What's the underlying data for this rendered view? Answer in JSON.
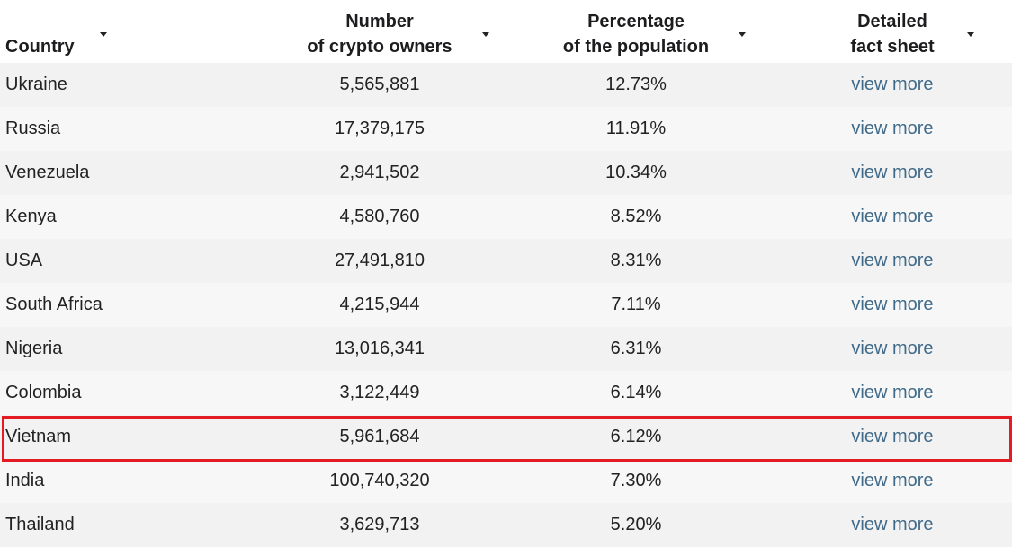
{
  "table": {
    "headers": {
      "country": "Country",
      "owners_line1": "Number",
      "owners_line2": "of crypto owners",
      "pct_line1": "Percentage",
      "pct_line2": "of the population",
      "fact_line1": "Detailed",
      "fact_line2": "fact sheet"
    },
    "rows": [
      {
        "country": "Ukraine",
        "owners": "5,565,881",
        "pct": "12.73%",
        "link": "view more"
      },
      {
        "country": "Russia",
        "owners": "17,379,175",
        "pct": "11.91%",
        "link": "view more"
      },
      {
        "country": "Venezuela",
        "owners": "2,941,502",
        "pct": "10.34%",
        "link": "view more"
      },
      {
        "country": "Kenya",
        "owners": "4,580,760",
        "pct": "8.52%",
        "link": "view more"
      },
      {
        "country": "USA",
        "owners": "27,491,810",
        "pct": "8.31%",
        "link": "view more"
      },
      {
        "country": "South Africa",
        "owners": "4,215,944",
        "pct": "7.11%",
        "link": "view more"
      },
      {
        "country": "Nigeria",
        "owners": "13,016,341",
        "pct": "6.31%",
        "link": "view more"
      },
      {
        "country": "Colombia",
        "owners": "3,122,449",
        "pct": "6.14%",
        "link": "view more"
      },
      {
        "country": "Vietnam",
        "owners": "5,961,684",
        "pct": "6.12%",
        "link": "view more"
      },
      {
        "country": "India",
        "owners": "100,740,320",
        "pct": "7.30%",
        "link": "view more"
      },
      {
        "country": "Thailand",
        "owners": "3,629,713",
        "pct": "5.20%",
        "link": "view more"
      }
    ]
  },
  "colors": {
    "link": "#3f6a8a",
    "highlight": "#e31b23",
    "row_odd": "#f2f2f2",
    "row_even": "#f7f7f7"
  },
  "icons": {
    "sort": "sort-caret-icon"
  }
}
